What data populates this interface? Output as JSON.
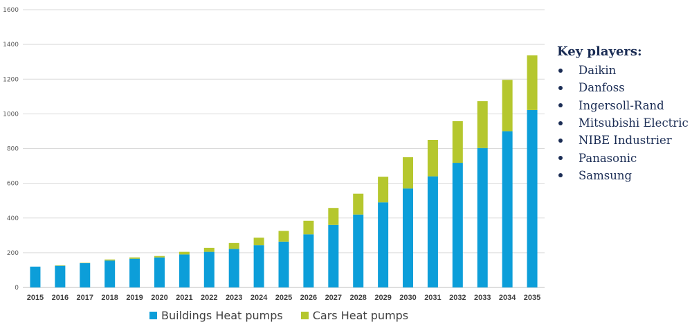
{
  "colors": {
    "buildings": "#0c9ed9",
    "cars": "#b5c72e",
    "grid": "#d9d9d9",
    "text_dark": "#1a2c54"
  },
  "chart_data": {
    "type": "bar",
    "stacked": true,
    "categories": [
      "2015",
      "2016",
      "2017",
      "2018",
      "2019",
      "2020",
      "2021",
      "2022",
      "2023",
      "2024",
      "2025",
      "2026",
      "2027",
      "2028",
      "2029",
      "2030",
      "2031",
      "2032",
      "2033",
      "2034",
      "2035"
    ],
    "series": [
      {
        "name": "Buildings Heat pumps",
        "color": "#0c9ed9",
        "values": [
          120,
          125,
          140,
          155,
          165,
          173,
          190,
          205,
          222,
          243,
          264,
          306,
          360,
          420,
          490,
          570,
          640,
          718,
          803,
          900,
          1022
        ]
      },
      {
        "name": "Cars Heat pumps",
        "color": "#b5c72e",
        "values": [
          0,
          2,
          2,
          6,
          8,
          8,
          15,
          23,
          34,
          44,
          62,
          78,
          98,
          120,
          148,
          180,
          210,
          240,
          270,
          296,
          315
        ]
      }
    ],
    "y_ticks": [
      "0",
      "200",
      "400",
      "600",
      "800",
      "1000",
      "1200",
      "1400",
      "1600"
    ],
    "ylim": [
      0,
      1600
    ],
    "grid": true,
    "legend_position": "bottom"
  },
  "key_players": {
    "title": "Key players:",
    "items": [
      "Daikin",
      "Danfoss",
      "Ingersoll-Rand",
      "Mitsubishi Electric",
      "NIBE Industrier",
      "Panasonic",
      "Samsung"
    ]
  }
}
